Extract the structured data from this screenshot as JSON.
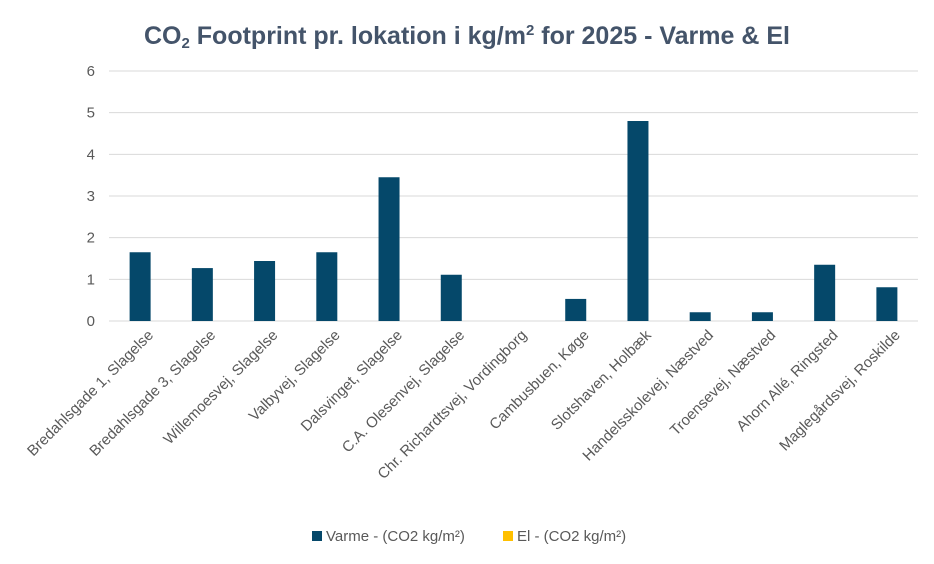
{
  "chart_data": {
    "type": "bar",
    "title": {
      "prefix": "CO",
      "sub": "2",
      "middle": " Footprint pr. lokation i kg/m",
      "sup": "2",
      "suffix": " for 2025 - Varme & El"
    },
    "categories": [
      "Bredahlsgade 1, Slagelse",
      "Bredahlsgade 3, Slagelse",
      "Willemoesvej, Slagelse",
      "Valbyvej, Slagelse",
      "Dalsvinget, Slagelse",
      "C.A. Olesenvej, Slagelse",
      "Chr. Richardtsvej, Vordingborg",
      "Cambusbuen, Køge",
      "Slotshaven, Holbæk",
      "Handelsskolevej, Næstved",
      "Troensevej, Næstved",
      "Ahorn Allé, Ringsted",
      "Maglegårdsvej, Roskilde"
    ],
    "series": [
      {
        "name": "Varme - (CO2 kg/m²)",
        "color": "#05486a",
        "values": [
          1.65,
          1.27,
          1.44,
          1.65,
          3.45,
          1.11,
          0,
          0.53,
          4.8,
          0.21,
          0.21,
          1.35,
          0.81
        ]
      },
      {
        "name": "El - (CO2 kg/m²)",
        "color": "#ffc000",
        "values": [
          0,
          0,
          0,
          0,
          0,
          0,
          0,
          0,
          0,
          0,
          0,
          0,
          0
        ]
      }
    ],
    "yticks": [
      "0",
      "1",
      "2",
      "3",
      "4",
      "5",
      "6"
    ],
    "ylim": [
      0,
      6
    ],
    "grid": true,
    "legend_position": "bottom"
  }
}
